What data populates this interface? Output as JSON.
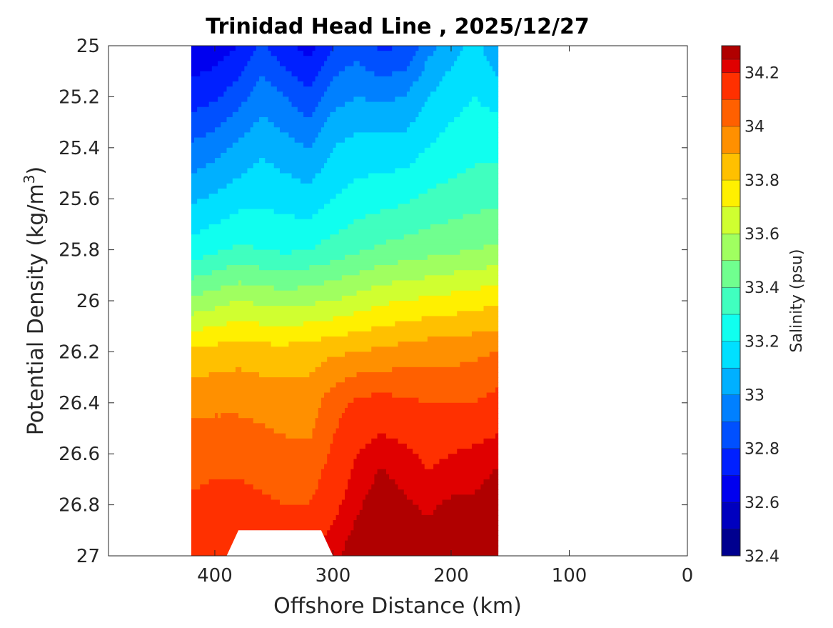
{
  "chart_data": {
    "type": "heatmap",
    "title": "Trinidad Head Line , 2025/12/27",
    "xlabel": "Offshore Distance (km)",
    "ylabel_main": "Potential Density (kg/m",
    "ylabel_sup": "3",
    "ylabel_close": ")",
    "colorbar_label": "Salinity (psu)",
    "x_axis": {
      "range": [
        490,
        0
      ],
      "reversed": true,
      "ticks": [
        400,
        300,
        200,
        100,
        0
      ],
      "tick_labels": [
        "400",
        "300",
        "200",
        "100",
        "0"
      ]
    },
    "y_axis": {
      "range": [
        25,
        27
      ],
      "reversed": true,
      "ticks": [
        25,
        25.2,
        25.4,
        25.6,
        25.8,
        26,
        26.2,
        26.4,
        26.6,
        26.8,
        27
      ],
      "tick_labels": [
        "25",
        "25.2",
        "25.4",
        "25.6",
        "25.8",
        "26",
        "26.2",
        "26.4",
        "26.6",
        "26.8",
        "27"
      ]
    },
    "data_extent_x": [
      420,
      160
    ],
    "contour_levels": [
      32.4,
      32.45,
      32.5,
      32.55,
      32.6,
      32.65,
      32.7,
      32.75,
      32.8,
      32.85,
      32.9,
      32.95,
      33.0,
      33.05,
      33.1,
      33.15,
      33.2,
      33.25,
      33.3,
      33.35,
      33.4,
      33.45,
      33.5,
      33.55,
      33.6,
      33.65,
      33.7,
      33.75,
      33.8,
      33.85,
      33.9,
      33.95,
      34.0,
      34.05,
      34.1,
      34.15,
      34.2,
      34.25,
      34.3
    ],
    "colorbar": {
      "range": [
        32.4,
        34.3
      ],
      "ticks": [
        32.4,
        32.6,
        32.8,
        33.0,
        33.2,
        33.4,
        33.6,
        33.8,
        34.0,
        34.2
      ],
      "tick_labels": [
        "32.4",
        "32.6",
        "32.8",
        "33",
        "33.2",
        "33.4",
        "33.6",
        "33.8",
        "34",
        "34.2"
      ],
      "bands": [
        {
          "from": 32.4,
          "to": 32.5,
          "color": "#00008f"
        },
        {
          "from": 32.5,
          "to": 32.6,
          "color": "#0000bf"
        },
        {
          "from": 32.6,
          "to": 32.7,
          "color": "#0000ef"
        },
        {
          "from": 32.7,
          "to": 32.8,
          "color": "#0020ff"
        },
        {
          "from": 32.8,
          "to": 32.9,
          "color": "#0050ff"
        },
        {
          "from": 32.9,
          "to": 33.0,
          "color": "#0080ff"
        },
        {
          "from": 33.0,
          "to": 33.1,
          "color": "#00b0ff"
        },
        {
          "from": 33.1,
          "to": 33.2,
          "color": "#00e0ff"
        },
        {
          "from": 33.2,
          "to": 33.3,
          "color": "#10ffef"
        },
        {
          "from": 33.3,
          "to": 33.4,
          "color": "#40ffbf"
        },
        {
          "from": 33.4,
          "to": 33.5,
          "color": "#70ff8f"
        },
        {
          "from": 33.5,
          "to": 33.6,
          "color": "#a0ff60"
        },
        {
          "from": 33.6,
          "to": 33.7,
          "color": "#d0ff30"
        },
        {
          "from": 33.7,
          "to": 33.8,
          "color": "#fff000"
        },
        {
          "from": 33.8,
          "to": 33.9,
          "color": "#ffc000"
        },
        {
          "from": 33.9,
          "to": 34.0,
          "color": "#ff9000"
        },
        {
          "from": 34.0,
          "to": 34.1,
          "color": "#ff6000"
        },
        {
          "from": 34.1,
          "to": 34.2,
          "color": "#ff3000"
        },
        {
          "from": 34.2,
          "to": 34.25,
          "color": "#e00000"
        },
        {
          "from": 34.25,
          "to": 34.3,
          "color": "#b00000"
        }
      ]
    },
    "stations_km": [
      420,
      400,
      380,
      360,
      340,
      320,
      300,
      280,
      260,
      240,
      220,
      200,
      180,
      160
    ],
    "density_levels": [
      25,
      25.2,
      25.4,
      25.6,
      25.8,
      26,
      26.2,
      26.4,
      26.6,
      26.8,
      27
    ],
    "salinity_grid": [
      [
        32.62,
        32.64,
        32.7,
        32.82,
        32.72,
        32.66,
        32.8,
        32.86,
        32.78,
        32.8,
        32.96,
        33.06,
        33.14,
        33.0
      ],
      [
        32.75,
        32.78,
        32.86,
        32.96,
        32.9,
        32.82,
        32.96,
        33.0,
        32.98,
        33.0,
        33.1,
        33.16,
        33.2,
        33.16
      ],
      [
        32.92,
        32.96,
        33.02,
        33.08,
        33.04,
        33.0,
        33.1,
        33.14,
        33.14,
        33.14,
        33.2,
        33.24,
        33.27,
        33.27
      ],
      [
        33.08,
        33.12,
        33.16,
        33.18,
        33.16,
        33.14,
        33.2,
        33.24,
        33.26,
        33.28,
        33.32,
        33.34,
        33.36,
        33.38
      ],
      [
        33.24,
        33.28,
        33.32,
        33.3,
        33.28,
        33.3,
        33.34,
        33.38,
        33.42,
        33.44,
        33.46,
        33.48,
        33.5,
        33.52
      ],
      [
        33.52,
        33.56,
        33.6,
        33.58,
        33.56,
        33.58,
        33.6,
        33.64,
        33.68,
        33.7,
        33.72,
        33.74,
        33.76,
        33.78
      ],
      [
        33.82,
        33.84,
        33.86,
        33.84,
        33.84,
        33.86,
        33.88,
        33.9,
        33.92,
        33.94,
        33.96,
        33.96,
        33.98,
        34.0
      ],
      [
        33.98,
        33.98,
        33.98,
        33.97,
        33.96,
        33.94,
        34.06,
        34.12,
        34.14,
        34.12,
        34.1,
        34.1,
        34.1,
        34.14
      ],
      [
        34.04,
        34.06,
        34.06,
        34.04,
        34.02,
        34.02,
        34.12,
        34.2,
        34.24,
        34.22,
        34.18,
        34.2,
        34.22,
        34.24
      ],
      [
        34.12,
        34.14,
        34.14,
        34.12,
        34.1,
        34.1,
        34.18,
        34.24,
        34.28,
        34.26,
        34.24,
        34.26,
        34.26,
        34.28
      ],
      [
        34.16,
        34.18,
        34.2,
        34.2,
        34.2,
        34.2,
        34.24,
        34.28,
        34.32,
        34.3,
        34.28,
        34.3,
        34.32,
        34.32
      ]
    ],
    "missing_region": {
      "x_top": [
        380,
        310
      ],
      "x_bottom": [
        390,
        300
      ],
      "y": [
        26.9,
        27
      ]
    },
    "grid": false,
    "legend": "colorbar-right"
  }
}
